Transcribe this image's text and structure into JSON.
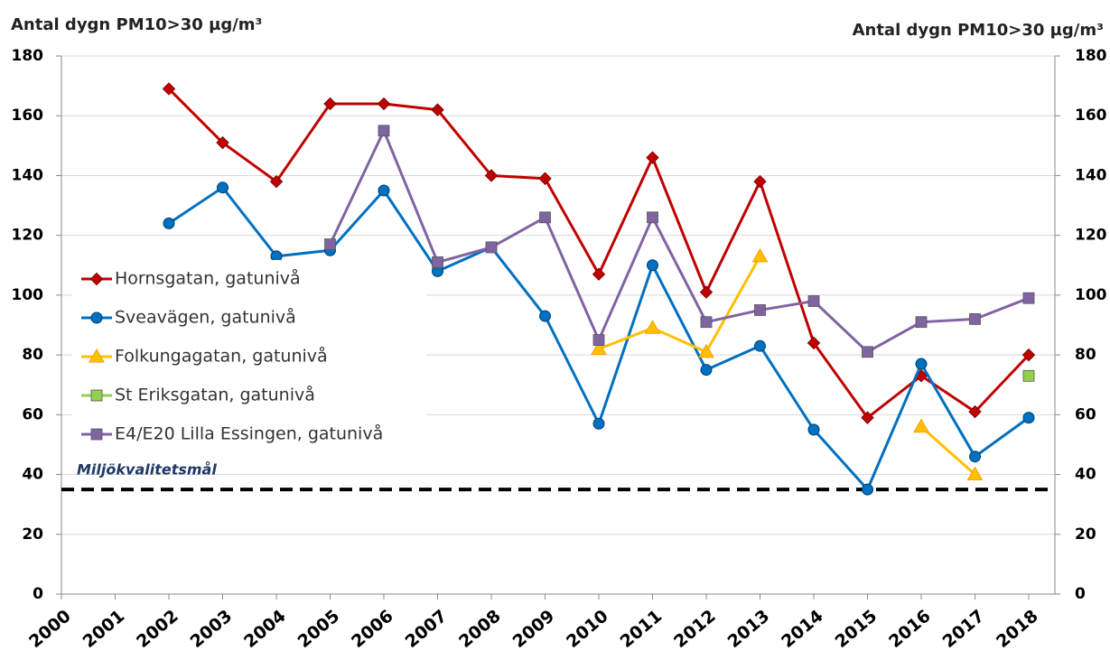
{
  "chart_data": {
    "type": "line",
    "y_label": "Antal dygn PM10>30 µg/m³",
    "y2_label": "Antal dygn PM10>30 µg/m³",
    "categories": [
      "2000",
      "2001",
      "2002",
      "2003",
      "2004",
      "2005",
      "2006",
      "2007",
      "2008",
      "2009",
      "2010",
      "2011",
      "2012",
      "2013",
      "2014",
      "2015",
      "2016",
      "2017",
      "2018"
    ],
    "series": [
      {
        "name": "Hornsgatan, gatunivå",
        "color": "#c00000",
        "marker": "diamond",
        "values": [
          null,
          null,
          169,
          151,
          138,
          164,
          164,
          162,
          140,
          139,
          107,
          146,
          101,
          138,
          84,
          59,
          73,
          61,
          80
        ]
      },
      {
        "name": "Sveavägen, gatunivå",
        "color": "#0070c0",
        "marker": "circle",
        "values": [
          null,
          null,
          124,
          136,
          113,
          115,
          135,
          108,
          116,
          93,
          57,
          110,
          75,
          83,
          55,
          35,
          77,
          46,
          59
        ]
      },
      {
        "name": "Folkungagatan, gatunivå",
        "color": "#ffc000",
        "marker": "triangle",
        "values": [
          null,
          null,
          null,
          null,
          null,
          null,
          null,
          null,
          null,
          null,
          82,
          89,
          81,
          113,
          null,
          null,
          56,
          40,
          null
        ]
      },
      {
        "name": "St Eriksgatan, gatunivå",
        "color": "#92d050",
        "marker": "square",
        "values": [
          null,
          null,
          null,
          null,
          null,
          null,
          null,
          null,
          null,
          null,
          null,
          null,
          null,
          null,
          null,
          null,
          null,
          null,
          73
        ]
      },
      {
        "name": "E4/E20 Lilla Essingen, gatunivå",
        "color": "#8064a2",
        "marker": "square",
        "values": [
          null,
          null,
          null,
          null,
          null,
          117,
          155,
          111,
          116,
          126,
          85,
          126,
          91,
          95,
          98,
          81,
          91,
          92,
          99
        ]
      }
    ],
    "reference_line": {
      "value": 35,
      "label": "Miljökvalitetsmål"
    },
    "ylim": [
      0,
      180
    ],
    "yticks": [
      0,
      20,
      40,
      60,
      80,
      100,
      120,
      140,
      160,
      180
    ],
    "y2lim": [
      0,
      180
    ],
    "y2ticks": [
      0,
      20,
      40,
      60,
      80,
      100,
      120,
      140,
      160,
      180
    ],
    "grid": true,
    "legend": "left"
  }
}
